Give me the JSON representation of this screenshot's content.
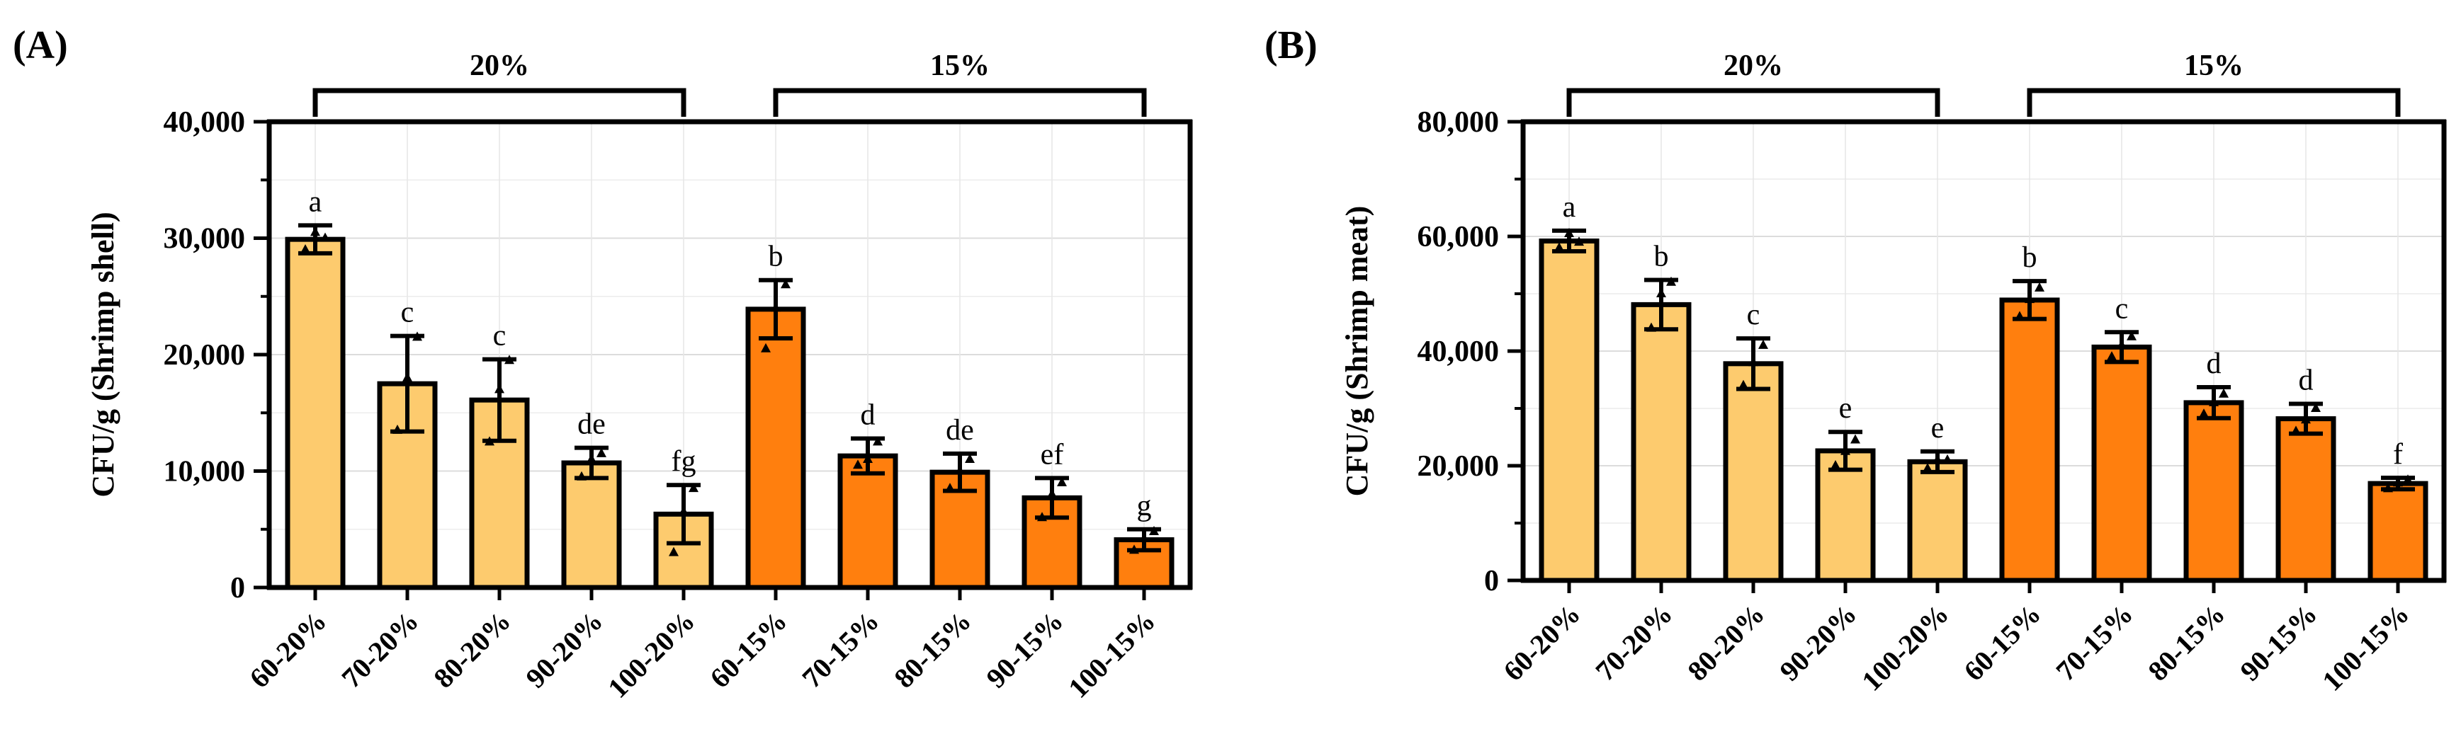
{
  "chart_data": [
    {
      "panel": "(A)",
      "type": "bar",
      "ylabel": "CFU/g (Shrimp shell)",
      "ylim": [
        0,
        40000
      ],
      "yticks": [
        0,
        10000,
        20000,
        30000,
        40000
      ],
      "ytick_labels": [
        "0",
        "10,000",
        "20,000",
        "30,000",
        "40,000"
      ],
      "categories": [
        "60-20%",
        "70-20%",
        "80-20%",
        "90-20%",
        "100-20%",
        "60-15%",
        "70-15%",
        "80-15%",
        "90-15%",
        "100-15%"
      ],
      "values": [
        29900,
        17500,
        16100,
        10700,
        6300,
        23900,
        11300,
        9900,
        7700,
        4100
      ],
      "errors": [
        1200,
        4100,
        3500,
        1300,
        2500,
        2500,
        1500,
        1600,
        1700,
        900
      ],
      "significance": [
        "a",
        "c",
        "c",
        "de",
        "fg",
        "b",
        "d",
        "de",
        "ef",
        "g"
      ],
      "points": [
        [
          29000,
          30500,
          30000
        ],
        [
          13500,
          18000,
          21500
        ],
        [
          12500,
          17000,
          19500
        ],
        [
          9500,
          11000,
          11500
        ],
        [
          3000,
          6500,
          8500
        ],
        [
          20500,
          24000,
          26000
        ],
        [
          10500,
          11000,
          12500
        ],
        [
          8500,
          10000,
          11000
        ],
        [
          6000,
          8000,
          9000
        ],
        [
          3200,
          4200,
          4800
        ]
      ],
      "groups": [
        {
          "label": "20%",
          "span": [
            0,
            4
          ]
        },
        {
          "label": "15%",
          "span": [
            5,
            9
          ]
        }
      ],
      "series_colors": [
        "#FDCB6E",
        "#FF7F0E"
      ],
      "grid": true
    },
    {
      "panel": "(B)",
      "type": "bar",
      "ylabel": "CFU/g (Shrimp meat)",
      "ylim": [
        0,
        80000
      ],
      "yticks": [
        0,
        20000,
        40000,
        60000,
        80000
      ],
      "ytick_labels": [
        "0",
        "20,000",
        "40,000",
        "60,000",
        "80,000"
      ],
      "categories": [
        "60-20%",
        "70-20%",
        "80-20%",
        "90-20%",
        "100-20%",
        "60-15%",
        "70-15%",
        "80-15%",
        "90-15%",
        "100-15%"
      ],
      "values": [
        59200,
        48100,
        37800,
        22600,
        20700,
        48900,
        40700,
        31000,
        28200,
        16900
      ],
      "errors": [
        1800,
        4300,
        4400,
        3300,
        1800,
        3300,
        2600,
        2700,
        2600,
        1000
      ],
      "significance": [
        "a",
        "b",
        "c",
        "e",
        "e",
        "b",
        "c",
        "d",
        "d",
        "f"
      ],
      "points": [
        [
          58000,
          60500,
          59000
        ],
        [
          44000,
          50000,
          52000
        ],
        [
          34000,
          38000,
          41000
        ],
        [
          20000,
          22500,
          24500
        ],
        [
          19500,
          21000,
          21000
        ],
        [
          46000,
          49000,
          51000
        ],
        [
          39000,
          41000,
          42500
        ],
        [
          29000,
          31000,
          32500
        ],
        [
          26000,
          28000,
          30000
        ],
        [
          16000,
          17000,
          17500
        ]
      ],
      "groups": [
        {
          "label": "20%",
          "span": [
            0,
            4
          ]
        },
        {
          "label": "15%",
          "span": [
            5,
            9
          ]
        }
      ],
      "series_colors": [
        "#FDCB6E",
        "#FF7F0E"
      ],
      "grid": true
    }
  ]
}
